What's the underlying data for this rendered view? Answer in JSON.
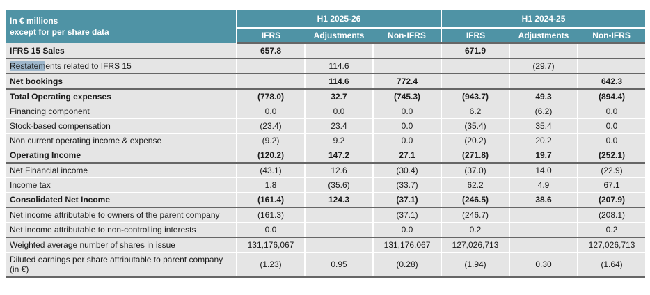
{
  "table": {
    "corner": {
      "line1": "In € millions",
      "line2": "except for per share data"
    },
    "column_groups": [
      {
        "label": "H1 2025-26",
        "subcolumns": [
          "IFRS",
          "Adjustments",
          "Non-IFRS"
        ]
      },
      {
        "label": "H1 2024-25",
        "subcolumns": [
          "IFRS",
          "Adjustments",
          "Non-IFRS"
        ]
      }
    ],
    "rows": [
      {
        "label": "IFRS 15 Sales",
        "bold": true,
        "section_end": true,
        "values": [
          "657.8",
          "",
          "",
          "671.9",
          "",
          ""
        ]
      },
      {
        "label": "Restatements related to IFRS 15",
        "bold": false,
        "section_end": true,
        "highlight_prefix": "Restatem",
        "values": [
          "",
          "114.6",
          "",
          "",
          "(29.7)",
          ""
        ]
      },
      {
        "label": "Net bookings",
        "bold": true,
        "section_end": true,
        "values": [
          "",
          "114.6",
          "772.4",
          "",
          "",
          "642.3"
        ]
      },
      {
        "label": "Total Operating expenses",
        "bold": true,
        "section_end": false,
        "values": [
          "(778.0)",
          "32.7",
          "(745.3)",
          "(943.7)",
          "49.3",
          "(894.4)"
        ]
      },
      {
        "label": "Financing component",
        "bold": false,
        "section_end": false,
        "values": [
          "0.0",
          "0.0",
          "0.0",
          "6.2",
          "(6.2)",
          "0.0"
        ]
      },
      {
        "label": "Stock-based compensation",
        "bold": false,
        "section_end": false,
        "values": [
          "(23.4)",
          "23.4",
          "0.0",
          "(35.4)",
          "35.4",
          "0.0"
        ]
      },
      {
        "label": "Non current operating income & expense",
        "bold": false,
        "section_end": false,
        "values": [
          "(9.2)",
          "9.2",
          "0.0",
          "(20.2)",
          "20.2",
          "0.0"
        ]
      },
      {
        "label": "Operating Income",
        "bold": true,
        "section_end": true,
        "values": [
          "(120.2)",
          "147.2",
          "27.1",
          "(271.8)",
          "19.7",
          "(252.1)"
        ]
      },
      {
        "label": "Net Financial income",
        "bold": false,
        "section_end": false,
        "values": [
          "(43.1)",
          "12.6",
          "(30.4)",
          "(37.0)",
          "14.0",
          "(22.9)"
        ]
      },
      {
        "label": "Income tax",
        "bold": false,
        "section_end": false,
        "values": [
          "1.8",
          "(35.6)",
          "(33.7)",
          "62.2",
          "4.9",
          "67.1"
        ]
      },
      {
        "label": "Consolidated Net Income",
        "bold": true,
        "section_end": true,
        "values": [
          "(161.4)",
          "124.3",
          "(37.1)",
          "(246.5)",
          "38.6",
          "(207.9)"
        ]
      },
      {
        "label": "Net income attributable to owners of the parent company",
        "bold": false,
        "section_end": false,
        "values": [
          "(161.3)",
          "",
          "(37.1)",
          "(246.7)",
          "",
          "(208.1)"
        ]
      },
      {
        "label": "Net income attributable to non-controlling interests",
        "bold": false,
        "section_end": true,
        "values": [
          "0.0",
          "",
          "0.0",
          "0.2",
          "",
          "0.2"
        ]
      },
      {
        "label": "Weighted average number of shares in issue",
        "bold": false,
        "section_end": false,
        "values": [
          "131,176,067",
          "",
          "131,176,067",
          "127,026,713",
          "",
          "127,026,713"
        ]
      },
      {
        "label": "Diluted earnings per share attributable to parent company (in €)",
        "bold": false,
        "section_end": true,
        "values": [
          "(1.23)",
          "0.95",
          "(0.28)",
          "(1.94)",
          "0.30",
          "(1.64)"
        ]
      }
    ]
  },
  "colors": {
    "header_teal": "#4f93a5",
    "row_gray": "#e5e5e5",
    "section_border": "#666666",
    "text_selection_highlight": "#9db6cb",
    "header_text": "#ffffff"
  },
  "text_selection": {
    "selected_text": "Restatem"
  }
}
